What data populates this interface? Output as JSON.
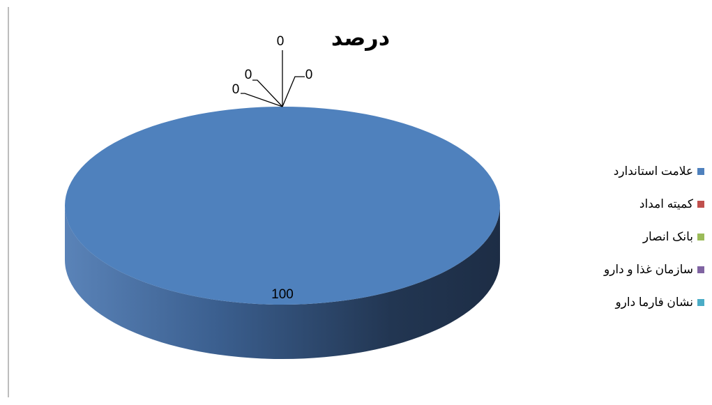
{
  "chart_data": {
    "type": "pie",
    "title": "درصد",
    "style": "3d",
    "legend_position": "right",
    "slices": [
      {
        "label": "علامت استاندارد",
        "value": 100,
        "color": "#4F81BD"
      },
      {
        "label": "کمیته امداد",
        "value": 0,
        "color": "#C0504D"
      },
      {
        "label": "بانک انصار",
        "value": 0,
        "color": "#9BBB59"
      },
      {
        "label": "سازمان غذا و دارو",
        "value": 0,
        "color": "#8064A2"
      },
      {
        "label": "نشان فارما دارو",
        "value": 0,
        "color": "#4BACC6"
      }
    ]
  }
}
